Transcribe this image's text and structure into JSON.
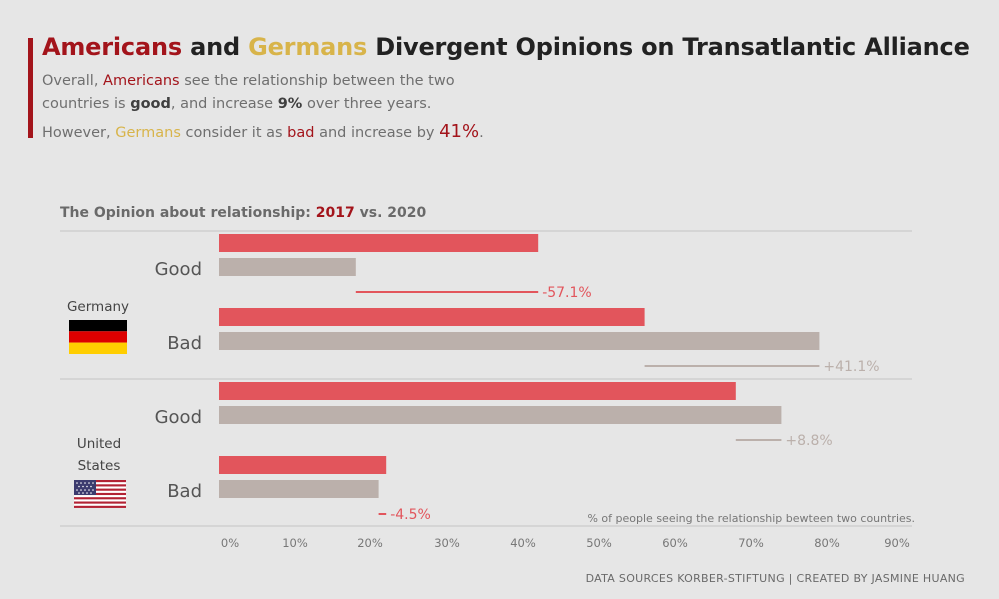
{
  "header": {
    "title_part1": "Americans",
    "title_part2": " and ",
    "title_part3": "Germans",
    "title_part4": " Divergent Opinions on Transatlantic Alliance",
    "line1_a": "Overall, ",
    "line1_b": "Americans",
    "line1_c": " see the relationship between the two",
    "line2_a": "countries is ",
    "line2_b": "good",
    "line2_c": ", and increase ",
    "line2_d": "9%",
    "line2_e": " over three years.",
    "line3_a": "However, ",
    "line3_b": "Germans",
    "line3_c": " consider it as ",
    "line3_d": "bad",
    "line3_e": " and increase by ",
    "line3_f": "41%",
    "line3_g": "."
  },
  "chart_title": {
    "prefix": "The Opinion about relationship: ",
    "year1": "2017",
    "middle": " vs. ",
    "year2": "2020"
  },
  "source": "DATA SOURCES KORBER-STIFTUNG | CREATED BY JASMINE HUANG",
  "colors": {
    "series_2017": "#e2555c",
    "series_2020": "#bbb0ab",
    "change_negative": "#e2555c",
    "change_positive": "#bbb0ab",
    "accent": "#a3141b",
    "gold": "#d8b44a"
  },
  "chart_data": {
    "type": "bar",
    "orientation": "horizontal",
    "x_ticks": [
      "0%",
      "10%",
      "20%",
      "30%",
      "40%",
      "50%",
      "60%",
      "70%",
      "80%",
      "90%"
    ],
    "xlim": [
      0,
      90
    ],
    "axis_note": "% of people seeing the relationship bewteen two countries.",
    "groups": [
      {
        "country": "Germany",
        "flag": "germany-flag",
        "rows": [
          {
            "label": "Good",
            "v2017": 42,
            "v2020": 18,
            "change": "-57.1%"
          },
          {
            "label": "Bad",
            "v2017": 56,
            "v2020": 79,
            "change": "+41.1%"
          }
        ]
      },
      {
        "country": "United States",
        "country_line1": "United",
        "country_line2": "States",
        "flag": "usa-flag",
        "rows": [
          {
            "label": "Good",
            "v2017": 68,
            "v2020": 74,
            "change": "+8.8%"
          },
          {
            "label": "Bad",
            "v2017": 22,
            "v2020": 21,
            "change": "-4.5%"
          }
        ]
      }
    ]
  }
}
